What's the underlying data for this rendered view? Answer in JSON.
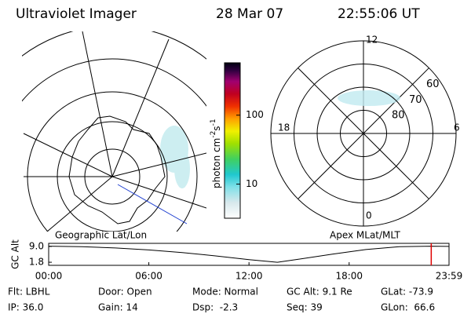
{
  "header": {
    "title": "Ultraviolet Imager",
    "date": "28 Mar 07",
    "time": "22:55:06 UT"
  },
  "geo_map": {
    "label": "Geographic Lat/Lon"
  },
  "colorbar": {
    "label": {
      "text": "photon cm",
      "exp1": "-2",
      "unit2": "s",
      "exp2": "-1"
    },
    "scale": "log",
    "range": [
      3.2,
      575
    ],
    "ticks": [
      10,
      100
    ]
  },
  "polar_map": {
    "label": "Apex MLat/MLT",
    "lat_range": [
      50,
      90
    ],
    "lat_rings": [
      80,
      70,
      60
    ],
    "mlt_labels": [
      12,
      18,
      6,
      0
    ]
  },
  "timeline": {
    "ylabel": "GC Alt",
    "yticks": [
      {
        "value": 9.0,
        "label": "9.0"
      },
      {
        "value": 1.8,
        "label": "1.8"
      }
    ],
    "ylim": [
      0.4,
      10.4
    ],
    "xlim": [
      0,
      23.983
    ],
    "xticks": [
      {
        "value": 0,
        "label": "00:00"
      },
      {
        "value": 6,
        "label": "06:00"
      },
      {
        "value": 12,
        "label": "12:00"
      },
      {
        "value": 18,
        "label": "18:00"
      },
      {
        "value": 23.983,
        "label": "23:59"
      }
    ],
    "hours": [
      0,
      2,
      4,
      6,
      8,
      10,
      12,
      13.7,
      15,
      17,
      19,
      21,
      22.9,
      23.98
    ],
    "altitude": [
      9.1,
      8.9,
      8.3,
      7.4,
      6.2,
      4.7,
      3.0,
      1.8,
      3.2,
      5.5,
      7.6,
      8.9,
      9.1,
      9.0
    ],
    "current_time": 22.918,
    "marker_color": "#e00000"
  },
  "status": [
    [
      "Flt: LBHL",
      "Door: Open",
      "Mode: Normal",
      "GC Alt: 9.1 Re",
      "GLat: -73.9"
    ],
    [
      "IP: 36.0",
      "Gain: 14",
      "Dsp:  -2.3",
      "Seq: 39",
      "GLon:  66.6"
    ]
  ]
}
